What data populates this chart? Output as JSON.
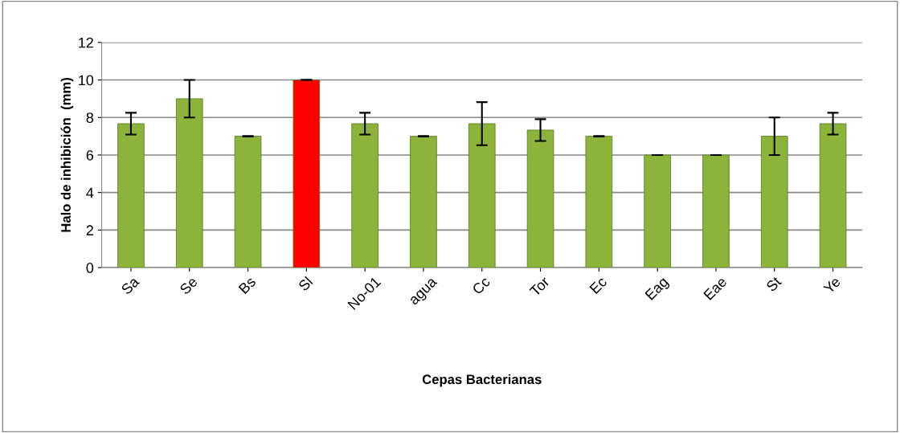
{
  "chart_data": {
    "type": "bar",
    "xlabel": "Cepas Bacterianas",
    "ylabel": "Halo de inhibición  (mm)",
    "categories": [
      "Sa",
      "Se",
      "Bs",
      "Sl",
      "No-01",
      "agua",
      "Cc",
      "Tor",
      "Ec",
      "Eag",
      "Eae",
      "St",
      "Ye"
    ],
    "values": [
      7.67,
      9.0,
      7.0,
      10.0,
      7.67,
      7.0,
      7.67,
      7.33,
      7.0,
      6.0,
      6.0,
      7.0,
      7.67
    ],
    "errors": [
      0.58,
      1.0,
      0,
      0,
      0.58,
      0,
      1.15,
      0.58,
      0,
      0,
      0,
      1.0,
      0.58
    ],
    "colors": [
      "#8db33a",
      "#8db33a",
      "#8db33a",
      "#ff0000",
      "#8db33a",
      "#8db33a",
      "#8db33a",
      "#8db33a",
      "#8db33a",
      "#8db33a",
      "#8db33a",
      "#8db33a",
      "#8db33a"
    ],
    "ylim": [
      0,
      12
    ],
    "yticks": [
      0,
      2,
      4,
      6,
      8,
      10,
      12
    ],
    "grid": "y",
    "legend": false
  }
}
